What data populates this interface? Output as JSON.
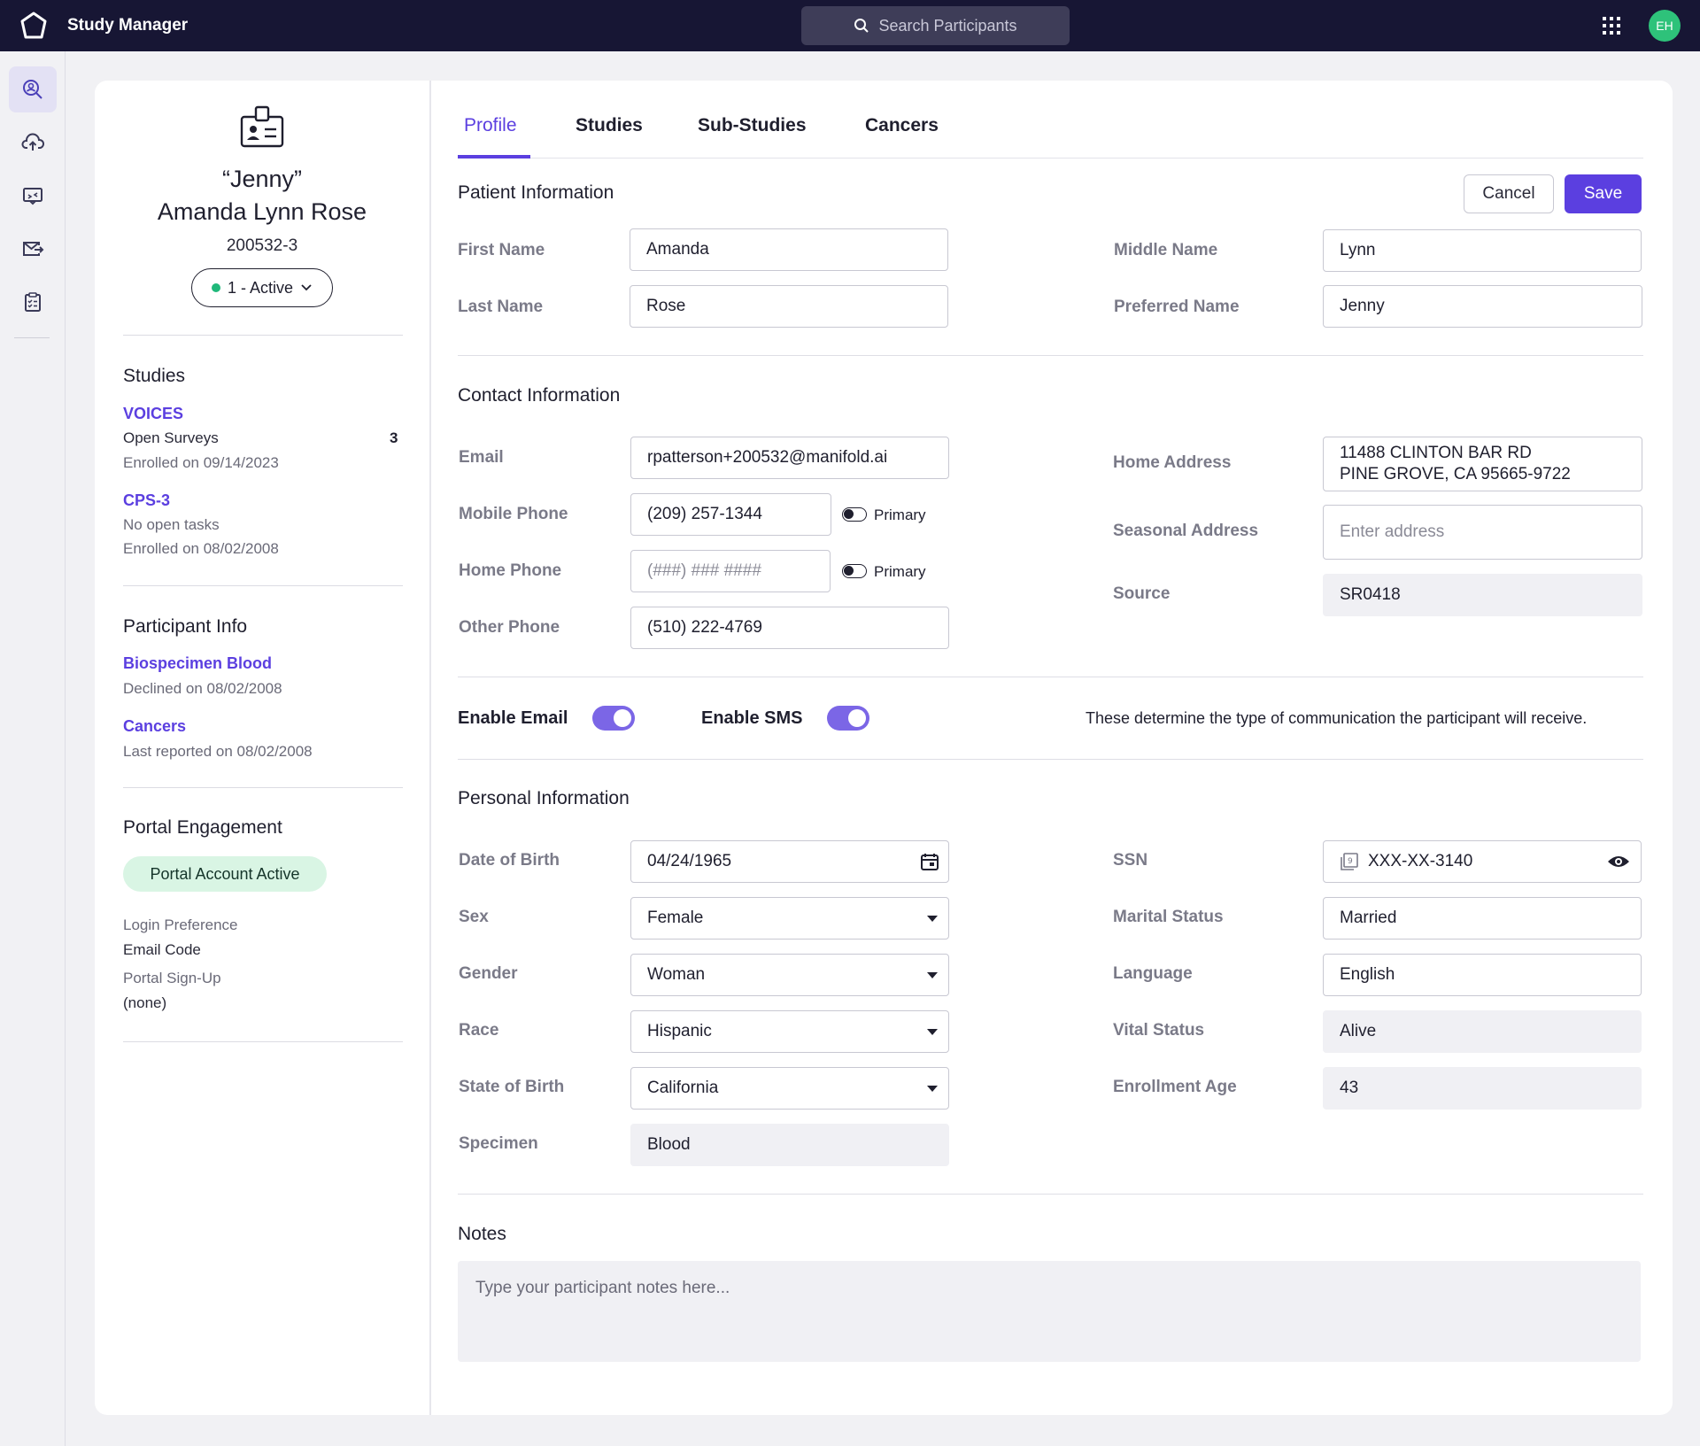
{
  "app": {
    "title": "Study Manager",
    "avatar_initials": "EH"
  },
  "search": {
    "placeholder": "Search Participants"
  },
  "rail": {
    "icons": [
      "search-participants-icon",
      "cloud-upload-icon",
      "message-icon",
      "mail-icon",
      "clipboard-icon"
    ]
  },
  "participant": {
    "nickname": "“Jenny”",
    "full_name": "Amanda Lynn Rose",
    "id": "200532-3",
    "status": "1 - Active",
    "status_color": "#20b87a"
  },
  "studies": {
    "title": "Studies",
    "items": [
      {
        "name": "VOICES",
        "line1": "Open Surveys",
        "count": "3",
        "line2": "Enrolled on 09/14/2023"
      },
      {
        "name": "CPS-3",
        "line1": "No open tasks",
        "line2": "Enrolled on 08/02/2008"
      }
    ]
  },
  "participant_info": {
    "title": "Participant Info",
    "items": [
      {
        "name": "Biospecimen Blood",
        "detail": "Declined on 08/02/2008"
      },
      {
        "name": "Cancers",
        "detail": "Last reported on 08/02/2008"
      }
    ]
  },
  "portal": {
    "title": "Portal Engagement",
    "account_status": "Portal Account Active",
    "login_pref_label": "Login Preference",
    "login_pref_value": "Email Code",
    "signup_label": "Portal Sign-Up",
    "signup_value": "(none)"
  },
  "tabs": [
    "Profile",
    "Studies",
    "Sub-Studies",
    "Cancers"
  ],
  "buttons": {
    "cancel": "Cancel",
    "save": "Save"
  },
  "patient_info": {
    "title": "Patient Information",
    "first_name_label": "First Name",
    "first_name": "Amanda",
    "last_name_label": "Last Name",
    "last_name": "Rose",
    "middle_name_label": "Middle Name",
    "middle_name": "Lynn",
    "preferred_name_label": "Preferred Name",
    "preferred_name": "Jenny"
  },
  "contact_info": {
    "title": "Contact Information",
    "email_label": "Email",
    "email": "rpatterson+200532@manifold.ai",
    "mobile_label": "Mobile Phone",
    "mobile": "(209) 257-1344",
    "home_phone_label": "Home Phone",
    "home_phone_placeholder": "(###) ### ####",
    "other_phone_label": "Other Phone",
    "other_phone": "(510) 222-4769",
    "primary_label": "Primary",
    "home_address_label": "Home Address",
    "home_address_line1": "11488 CLINTON BAR RD",
    "home_address_line2": "PINE GROVE, CA 95665-9722",
    "seasonal_address_label": "Seasonal Address",
    "seasonal_address_placeholder": "Enter address",
    "source_label": "Source",
    "source": "SR0418"
  },
  "communication": {
    "email_label": "Enable Email",
    "email_enabled": true,
    "sms_label": "Enable SMS",
    "sms_enabled": true,
    "hint": "These determine the type of communication the participant will receive."
  },
  "personal_info": {
    "title": "Personal Information",
    "dob_label": "Date of Birth",
    "dob": "04/24/1965",
    "sex_label": "Sex",
    "sex": "Female",
    "gender_label": "Gender",
    "gender": "Woman",
    "race_label": "Race",
    "race": "Hispanic",
    "state_label": "State of Birth",
    "state": "California",
    "specimen_label": "Specimen",
    "specimen": "Blood",
    "ssn_label": "SSN",
    "ssn": "XXX-XX-3140",
    "marital_label": "Marital Status",
    "marital": "Married",
    "language_label": "Language",
    "language": "English",
    "vital_label": "Vital Status",
    "vital": "Alive",
    "enroll_age_label": "Enrollment Age",
    "enroll_age": "43"
  },
  "notes": {
    "title": "Notes",
    "placeholder": "Type your participant notes here..."
  }
}
